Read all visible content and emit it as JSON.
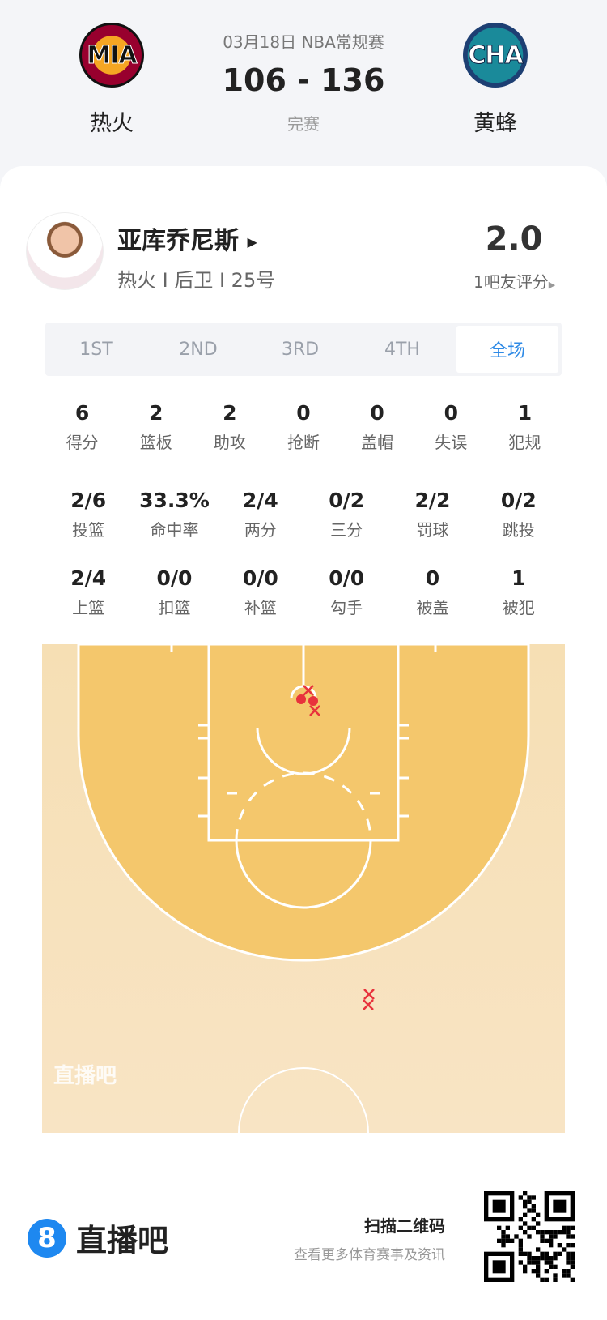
{
  "game": {
    "date_league": "03月18日 NBA常规赛",
    "score": "106 - 136",
    "status": "完赛",
    "home": {
      "abbr": "MIA",
      "name": "热火",
      "color": "#98002e"
    },
    "away": {
      "abbr": "CHA",
      "name": "黄蜂",
      "color": "#1d4f73"
    }
  },
  "player": {
    "name": "亚库乔尼斯",
    "info": "热火 I 后卫 I 25号",
    "rating": "2.0",
    "rating_label": "1吧友评分"
  },
  "tabs": [
    {
      "label": "1ST"
    },
    {
      "label": "2ND"
    },
    {
      "label": "3RD"
    },
    {
      "label": "4TH"
    },
    {
      "label": "全场",
      "active": true
    }
  ],
  "stats_row1": [
    {
      "v": "6",
      "l": "得分"
    },
    {
      "v": "2",
      "l": "篮板"
    },
    {
      "v": "2",
      "l": "助攻"
    },
    {
      "v": "0",
      "l": "抢断"
    },
    {
      "v": "0",
      "l": "盖帽"
    },
    {
      "v": "0",
      "l": "失误"
    },
    {
      "v": "1",
      "l": "犯规"
    }
  ],
  "stats_row2": [
    {
      "v": "2/6",
      "l": "投篮"
    },
    {
      "v": "33.3%",
      "l": "命中率"
    },
    {
      "v": "2/4",
      "l": "两分"
    },
    {
      "v": "0/2",
      "l": "三分"
    },
    {
      "v": "2/2",
      "l": "罚球"
    },
    {
      "v": "0/2",
      "l": "跳投"
    }
  ],
  "stats_row3": [
    {
      "v": "2/4",
      "l": "上篮"
    },
    {
      "v": "0/0",
      "l": "扣篮"
    },
    {
      "v": "0/0",
      "l": "补篮"
    },
    {
      "v": "0/0",
      "l": "勾手"
    },
    {
      "v": "0",
      "l": "被盖"
    },
    {
      "v": "1",
      "l": "被犯"
    }
  ],
  "shot_chart": {
    "watermark": "直播吧",
    "made_color": "#e8323c",
    "shots": [
      {
        "result": "made",
        "zone": "rim"
      },
      {
        "result": "made",
        "zone": "rim"
      },
      {
        "result": "missed",
        "zone": "rim"
      },
      {
        "result": "missed",
        "zone": "rim"
      },
      {
        "result": "missed",
        "zone": "three"
      },
      {
        "result": "missed",
        "zone": "three"
      }
    ]
  },
  "footer": {
    "brand": "直播吧",
    "brand_color": "#1e88f0",
    "scan": "扫描二维码",
    "desc": "查看更多体育赛事及资讯"
  }
}
